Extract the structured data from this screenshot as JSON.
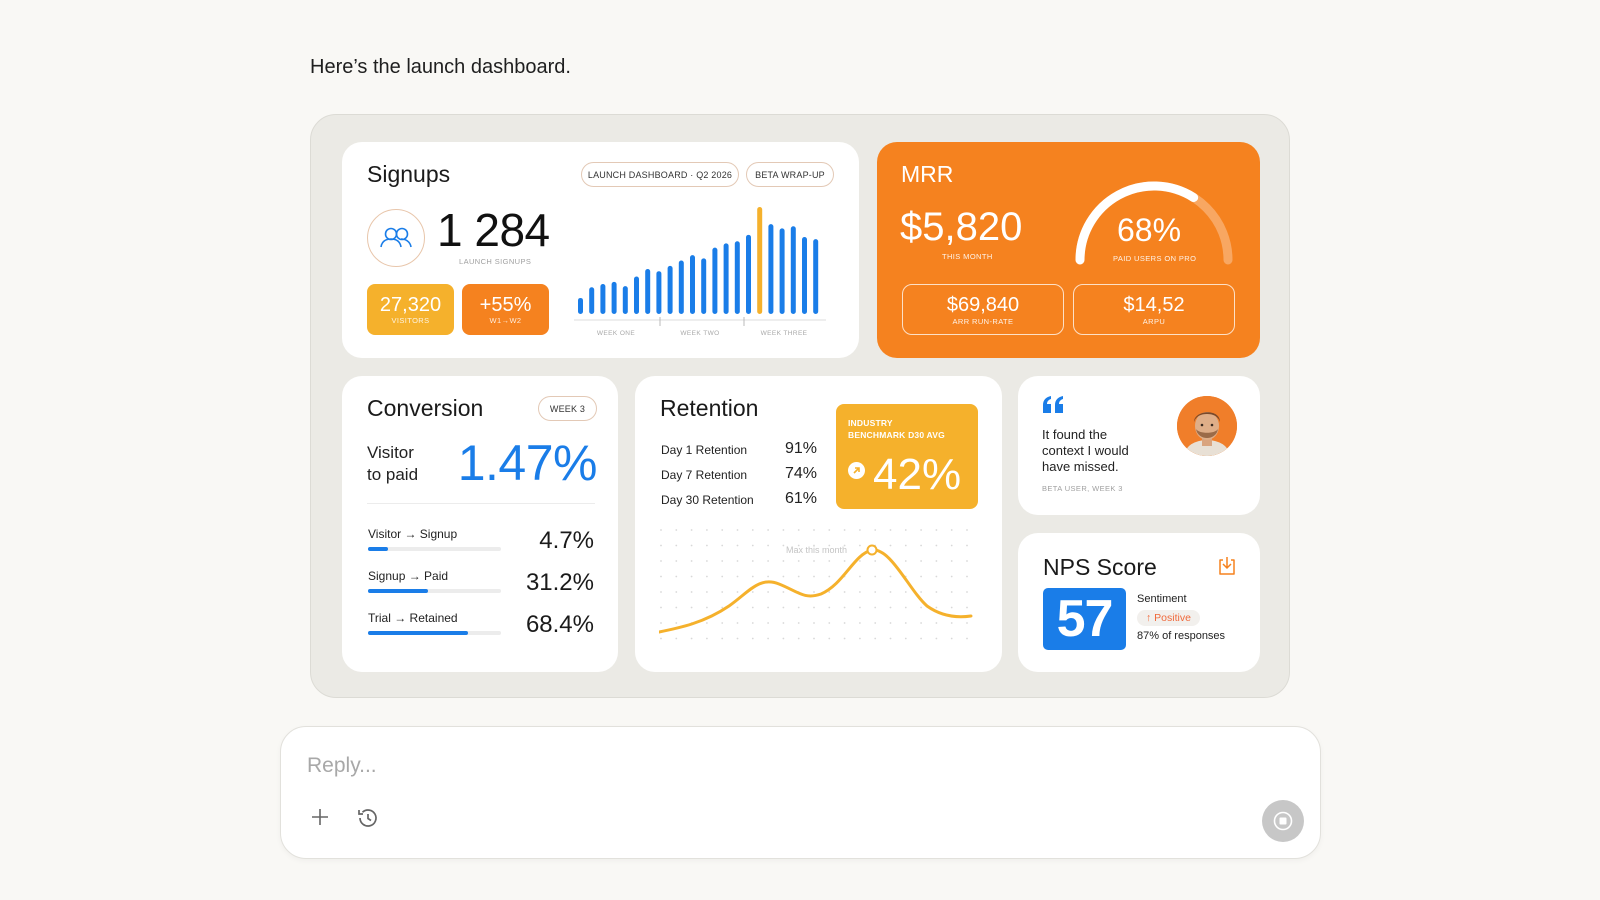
{
  "intro_text": "Here’s the launch dashboard.",
  "signups": {
    "title": "Signups",
    "pills": [
      "LAUNCH DASHBOARD · Q2 2026",
      "BETA WRAP-UP"
    ],
    "total": "1 284",
    "total_label": "LAUNCH SIGNUPS",
    "visitors": "27,320",
    "visitors_label": "VISITORS",
    "growth": "+55%",
    "growth_label": "W1→W2",
    "week_labels": [
      "WEEK ONE",
      "WEEK TWO",
      "WEEK THREE"
    ],
    "bars": [
      0.15,
      0.25,
      0.28,
      0.3,
      0.26,
      0.35,
      0.42,
      0.4,
      0.45,
      0.5,
      0.55,
      0.52,
      0.62,
      0.66,
      0.68,
      0.74,
      1.0,
      0.84,
      0.8,
      0.82,
      0.72,
      0.7
    ],
    "highlight_index": 16,
    "colors": {
      "bar": "#1a7de8",
      "highlight": "#f5b12c"
    }
  },
  "mrr": {
    "title": "MRR",
    "value": "$5,820",
    "value_label": "THIS MONTH",
    "gauge_value": "68%",
    "gauge_fraction": 0.68,
    "gauge_label": "PAID USERS ON PRO",
    "arr": "$69,840",
    "arr_label": "ARR RUN-RATE",
    "arpu": "$14,52",
    "arpu_label": "ARPU",
    "color": "#f5821f"
  },
  "conversion": {
    "title": "Conversion",
    "pill": "WEEK 3",
    "headline_label_1": "Visitor",
    "headline_label_2": "to paid",
    "headline_value": "1.47%",
    "rows": [
      {
        "label": "Visitor → Signup",
        "value": "4.7%",
        "fraction": 0.15
      },
      {
        "label": "Signup → Paid",
        "value": "31.2%",
        "fraction": 0.45
      },
      {
        "label": "Trial → Retained",
        "value": "68.4%",
        "fraction": 0.75
      }
    ]
  },
  "retention": {
    "title": "Retention",
    "rows": [
      {
        "label": "Day 1 Retention",
        "value": "91%"
      },
      {
        "label": "Day 7 Retention",
        "value": "74%"
      },
      {
        "label": "Day 30 Retention",
        "value": "61%"
      }
    ],
    "benchmark_label_1": "INDUSTRY",
    "benchmark_label_2": "BENCHMARK D30 AVG",
    "benchmark_value": "42%",
    "chart_annotation": "Max this month"
  },
  "quote": {
    "text_1": "It found the",
    "text_2": "context I would",
    "text_3": "have missed.",
    "attribution": "BETA USER, WEEK 3"
  },
  "nps": {
    "title": "NPS Score",
    "score": "57",
    "sentiment_label": "Sentiment",
    "sentiment_value": "↑ Positive",
    "responses": "87% of responses"
  },
  "reply": {
    "placeholder": "Reply..."
  }
}
